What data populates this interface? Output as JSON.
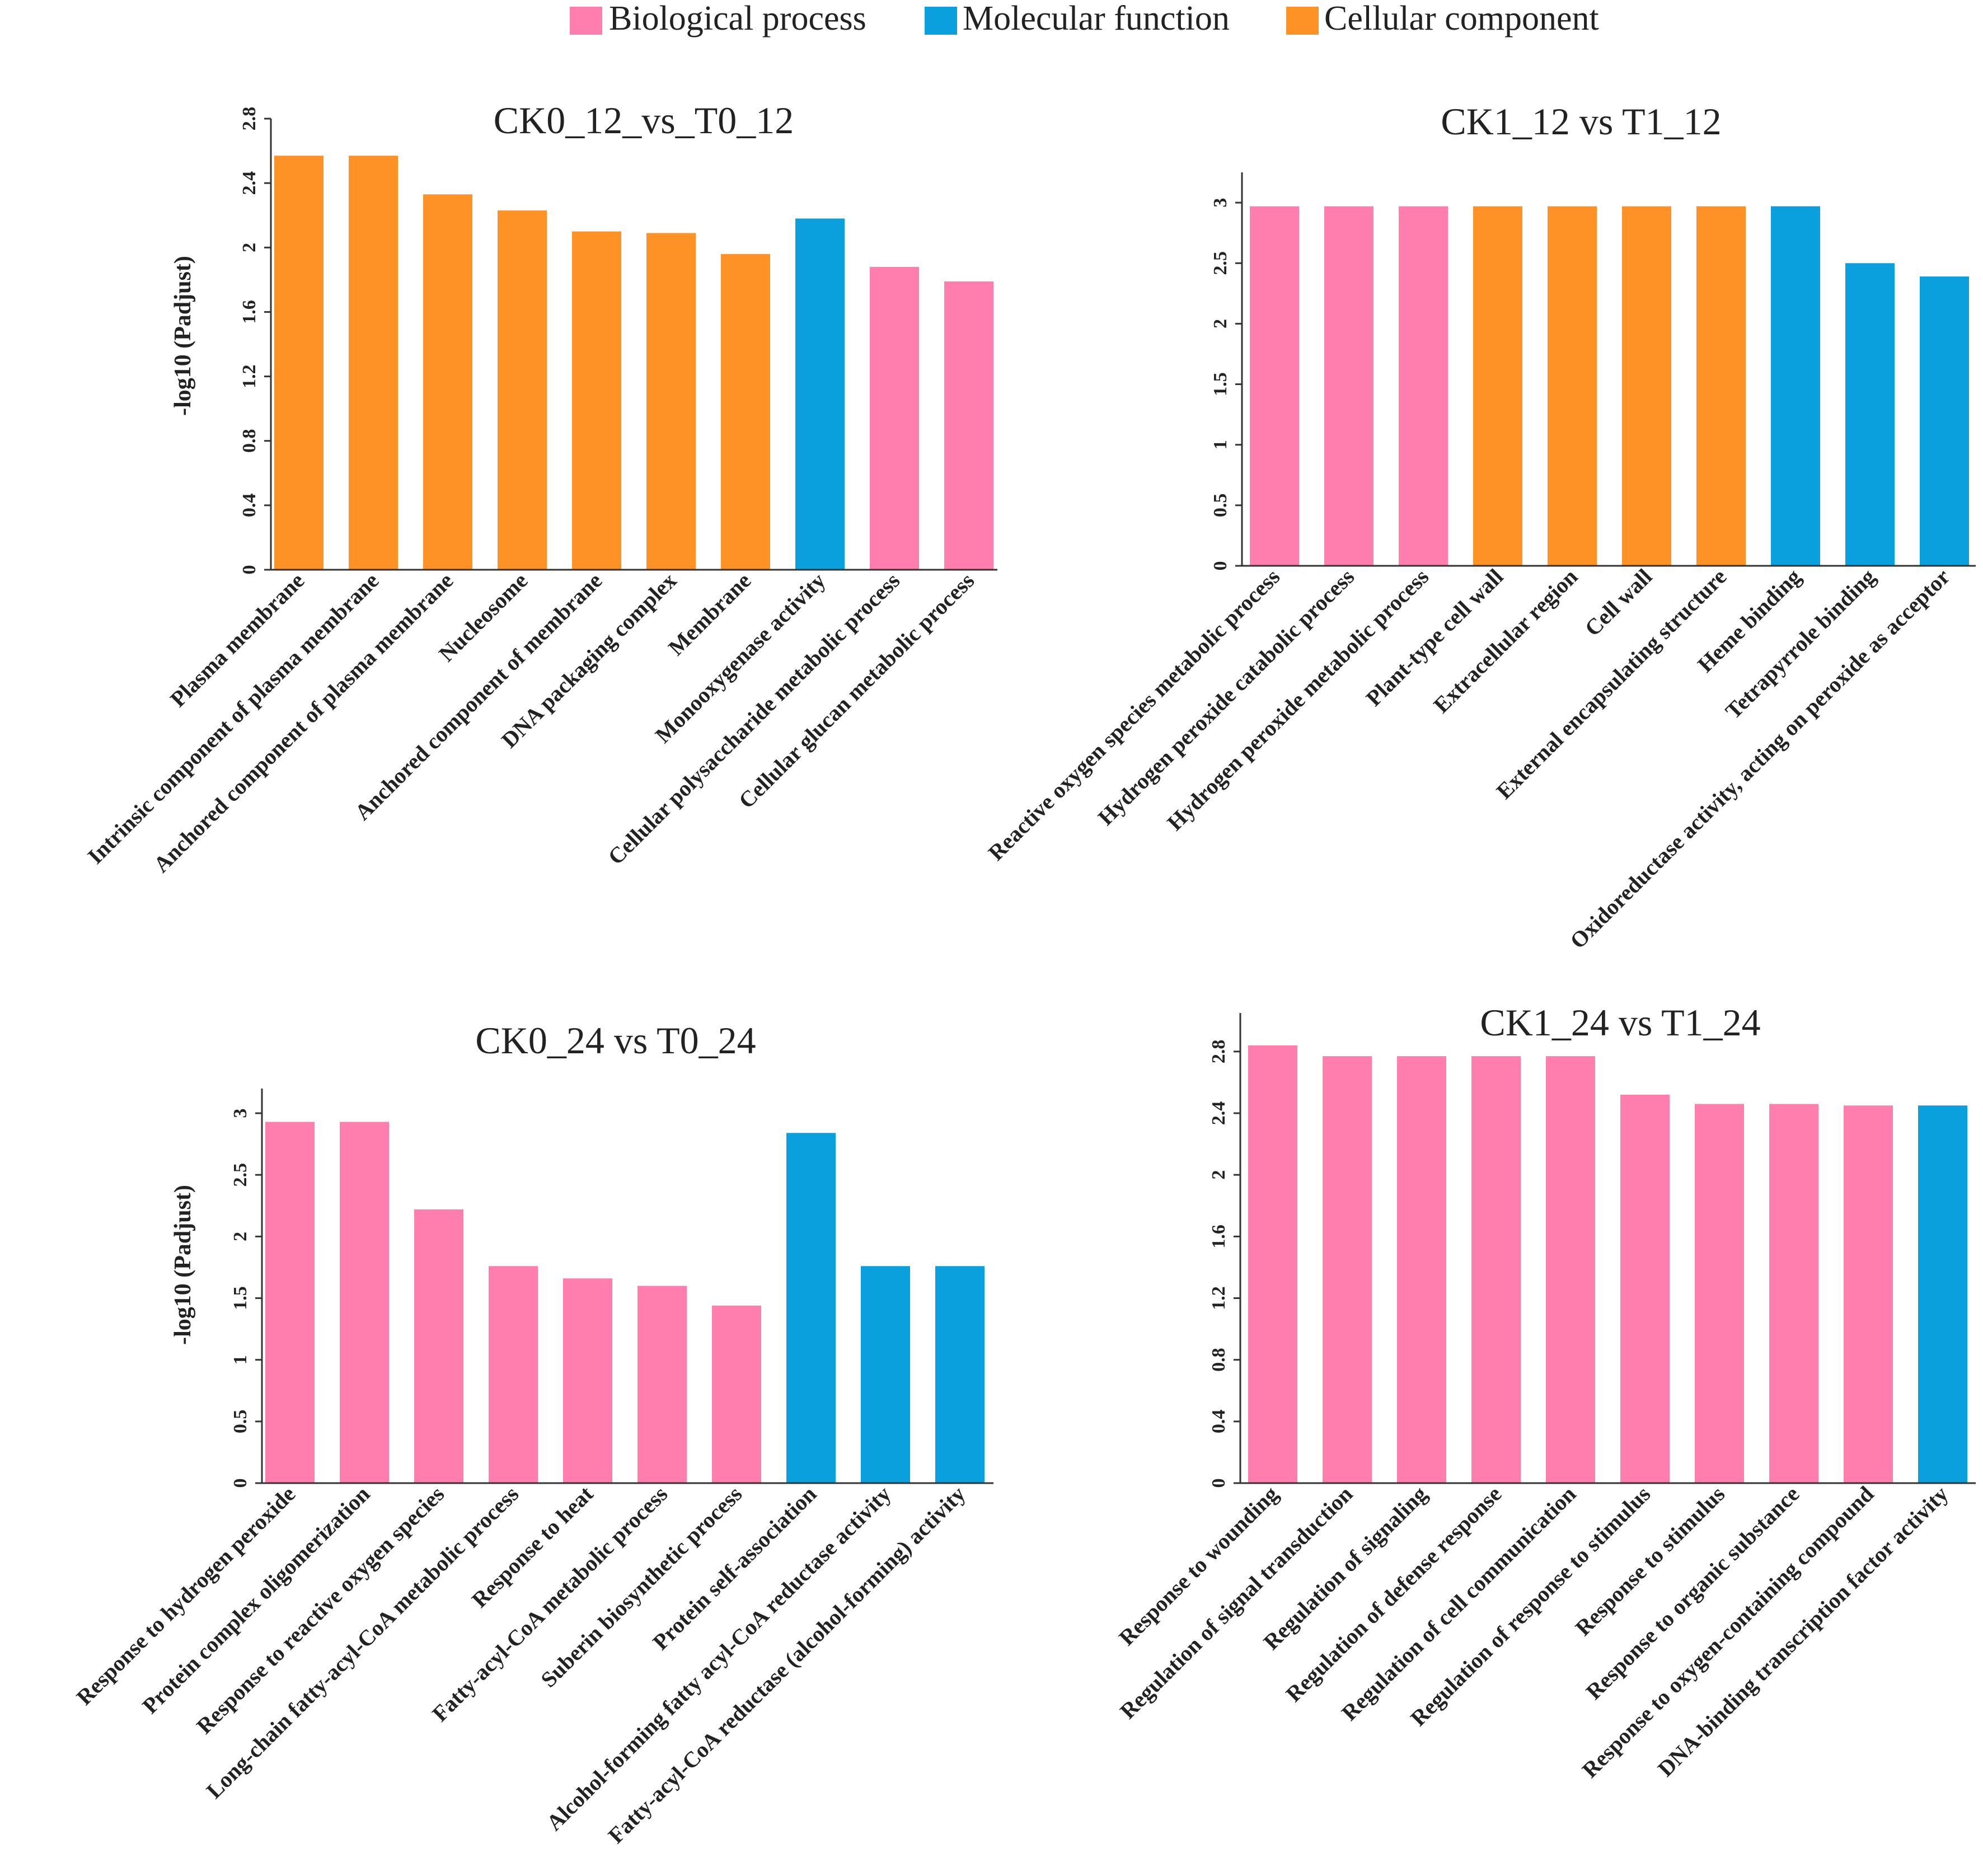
{
  "legend": {
    "items": [
      {
        "label": "Biological process",
        "color": "#FF7EAD"
      },
      {
        "label": "Molecular function",
        "color": "#0AA0DE"
      },
      {
        "label": "Cellular component",
        "color": "#FF9226"
      }
    ]
  },
  "chart_data": [
    {
      "type": "bar",
      "title": "CK0_12_vs_T0_12",
      "ylabel": "-log10 (Padjust)",
      "ylim": [
        0,
        2.8
      ],
      "yticks": [
        "0",
        "0.4",
        "0.8",
        "1.2",
        "1.6",
        "2",
        "2.4",
        "2.8"
      ],
      "categories": [
        "Plasma membrane",
        "Intrinsic component of plasma membrane",
        "Anchored component of plasma membrane",
        "Nucleosome",
        "Anchored component of membrane",
        "DNA packaging complex",
        "Membrane",
        "Monooxygenase activity",
        "Cellular polysaccharide metabolic process",
        "Cellular glucan metabolic process"
      ],
      "values": [
        2.57,
        2.57,
        2.33,
        2.23,
        2.1,
        2.09,
        1.96,
        2.18,
        1.88,
        1.79
      ],
      "groups": [
        "Cellular component",
        "Cellular component",
        "Cellular component",
        "Cellular component",
        "Cellular component",
        "Cellular component",
        "Cellular component",
        "Molecular function",
        "Biological process",
        "Biological process"
      ]
    },
    {
      "type": "bar",
      "title": "CK1_12 vs T1_12",
      "ylabel": "",
      "ylim": [
        0,
        3.25
      ],
      "yticks": [
        "0",
        "0.5",
        "1",
        "1.5",
        "2",
        "2.5",
        "3"
      ],
      "categories": [
        "Reactive oxygen species metabolic process",
        "Hydrogen peroxide catabolic process",
        "Hydrogen peroxide metabolic process",
        "Plant-type cell wall",
        "Extracellular region",
        "Cell wall",
        "External encapsulating structure",
        "Heme binding",
        "Tetrapyrrole binding",
        "Oxidoreductase activity, acting on peroxide as acceptor"
      ],
      "values": [
        2.97,
        2.97,
        2.97,
        2.97,
        2.97,
        2.97,
        2.97,
        2.97,
        2.5,
        2.39
      ],
      "groups": [
        "Biological process",
        "Biological process",
        "Biological process",
        "Cellular component",
        "Cellular component",
        "Cellular component",
        "Cellular component",
        "Molecular function",
        "Molecular function",
        "Molecular function"
      ]
    },
    {
      "type": "bar",
      "title": "CK0_24 vs T0_24",
      "ylabel": "-log10 (Padjust)",
      "ylim": [
        0,
        3.2
      ],
      "yticks": [
        "0",
        "0.5",
        "1",
        "1.5",
        "2",
        "2.5",
        "3"
      ],
      "categories": [
        "Response to hydrogen peroxide",
        "Protein complex oligomerization",
        "Response to reactive oxygen species",
        "Long-chain fatty-acyl-CoA metabolic process",
        "Response to heat",
        "Fatty-acyl-CoA metabolic process",
        "Suberin biosynthetic process",
        "Protein self-association",
        "Alcohol-forming fatty acyl-CoA reductase activity",
        "Fatty-acyl-CoA reductase (alcohol-forming) activity"
      ],
      "values": [
        2.93,
        2.93,
        2.22,
        1.76,
        1.66,
        1.6,
        1.44,
        2.84,
        1.76,
        1.76
      ],
      "groups": [
        "Biological process",
        "Biological process",
        "Biological process",
        "Biological process",
        "Biological process",
        "Biological process",
        "Biological process",
        "Molecular function",
        "Molecular function",
        "Molecular function"
      ]
    },
    {
      "type": "bar",
      "title": "CK1_24 vs T1_24",
      "ylabel": "",
      "ylim": [
        0,
        3.05
      ],
      "yticks": [
        "0",
        "0.4",
        "0.8",
        "1.2",
        "1.6",
        "2",
        "2.4",
        "2.8"
      ],
      "categories": [
        "Response to wounding",
        "Regulation of signal transduction",
        "Regulation of signaling",
        "Regulation of defense response",
        "Regulation of cell communication",
        "Regulation of response to stimulus",
        "Response to stimulus",
        "Response to organic substance",
        "Response to oxygen-containing compound",
        "DNA-binding transcription factor activity"
      ],
      "values": [
        2.84,
        2.77,
        2.77,
        2.77,
        2.77,
        2.52,
        2.46,
        2.46,
        2.45,
        2.45
      ],
      "groups": [
        "Biological process",
        "Biological process",
        "Biological process",
        "Biological process",
        "Biological process",
        "Biological process",
        "Biological process",
        "Biological process",
        "Biological process",
        "Molecular function"
      ]
    }
  ]
}
